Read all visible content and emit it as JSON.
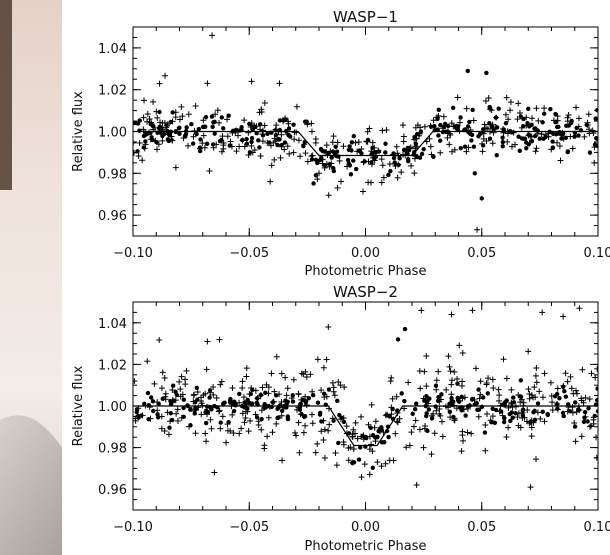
{
  "chart_data": [
    {
      "type": "scatter",
      "title": "WASP−1",
      "xlabel": "Photometric Phase",
      "ylabel": "Relative flux",
      "xlim": [
        -0.1,
        0.1
      ],
      "ylim": [
        0.95,
        1.05
      ],
      "xticks": [
        "−0.10",
        "−0.05",
        "0.00",
        "0.05",
        "0.10"
      ],
      "yticks": [
        "0.96",
        "0.98",
        "1.00",
        "1.02",
        "1.04"
      ],
      "model": {
        "depth": 0.0115,
        "transit_half_width": 0.029,
        "ingress_duration": 0.009
      },
      "series": [
        {
          "marker": "plus",
          "scatter_sigma": 0.0075,
          "seed": 11,
          "count": 330,
          "outliers": [
            [
              -0.066,
              1.046
            ],
            [
              -0.068,
              1.023
            ],
            [
              -0.049,
              1.024
            ],
            [
              -0.037,
              1.023
            ],
            [
              0.048,
              0.953
            ],
            [
              0.053,
              1.016
            ],
            [
              -0.041,
              0.976
            ],
            [
              -0.012,
              0.973
            ]
          ]
        },
        {
          "marker": "dot",
          "scatter_sigma": 0.0045,
          "seed": 23,
          "count": 300,
          "outliers": [
            [
              0.044,
              1.029
            ],
            [
              0.052,
              1.028
            ],
            [
              0.047,
              0.98
            ],
            [
              0.05,
              0.968
            ]
          ]
        }
      ]
    },
    {
      "type": "scatter",
      "title": "WASP−2",
      "xlabel": "Photometric Phase",
      "ylabel": "Relative flux",
      "xlim": [
        -0.1,
        0.1
      ],
      "ylim": [
        0.95,
        1.05
      ],
      "xticks": [
        "−0.10",
        "−0.05",
        "0.00",
        "0.05",
        "0.10"
      ],
      "yticks": [
        "0.96",
        "0.98",
        "1.00",
        "1.02",
        "1.04"
      ],
      "model": {
        "depth": 0.019,
        "transit_half_width": 0.016,
        "ingress_duration": 0.011
      },
      "series": [
        {
          "marker": "plus",
          "scatter_sigma": 0.0105,
          "seed": 37,
          "count": 420,
          "outliers": [
            [
              -0.016,
              1.038
            ],
            [
              0.024,
              1.046
            ],
            [
              0.037,
              1.044
            ],
            [
              0.046,
              1.046
            ],
            [
              0.076,
              1.045
            ],
            [
              0.085,
              1.043
            ],
            [
              0.092,
              1.047
            ],
            [
              -0.065,
              0.968
            ],
            [
              0.022,
              0.962
            ],
            [
              0.071,
              0.961
            ],
            [
              -0.068,
              1.031
            ]
          ]
        },
        {
          "marker": "dot",
          "scatter_sigma": 0.0045,
          "seed": 53,
          "count": 260,
          "outliers": [
            [
              0.017,
              1.037
            ],
            [
              0.014,
              1.032
            ]
          ]
        }
      ]
    }
  ]
}
